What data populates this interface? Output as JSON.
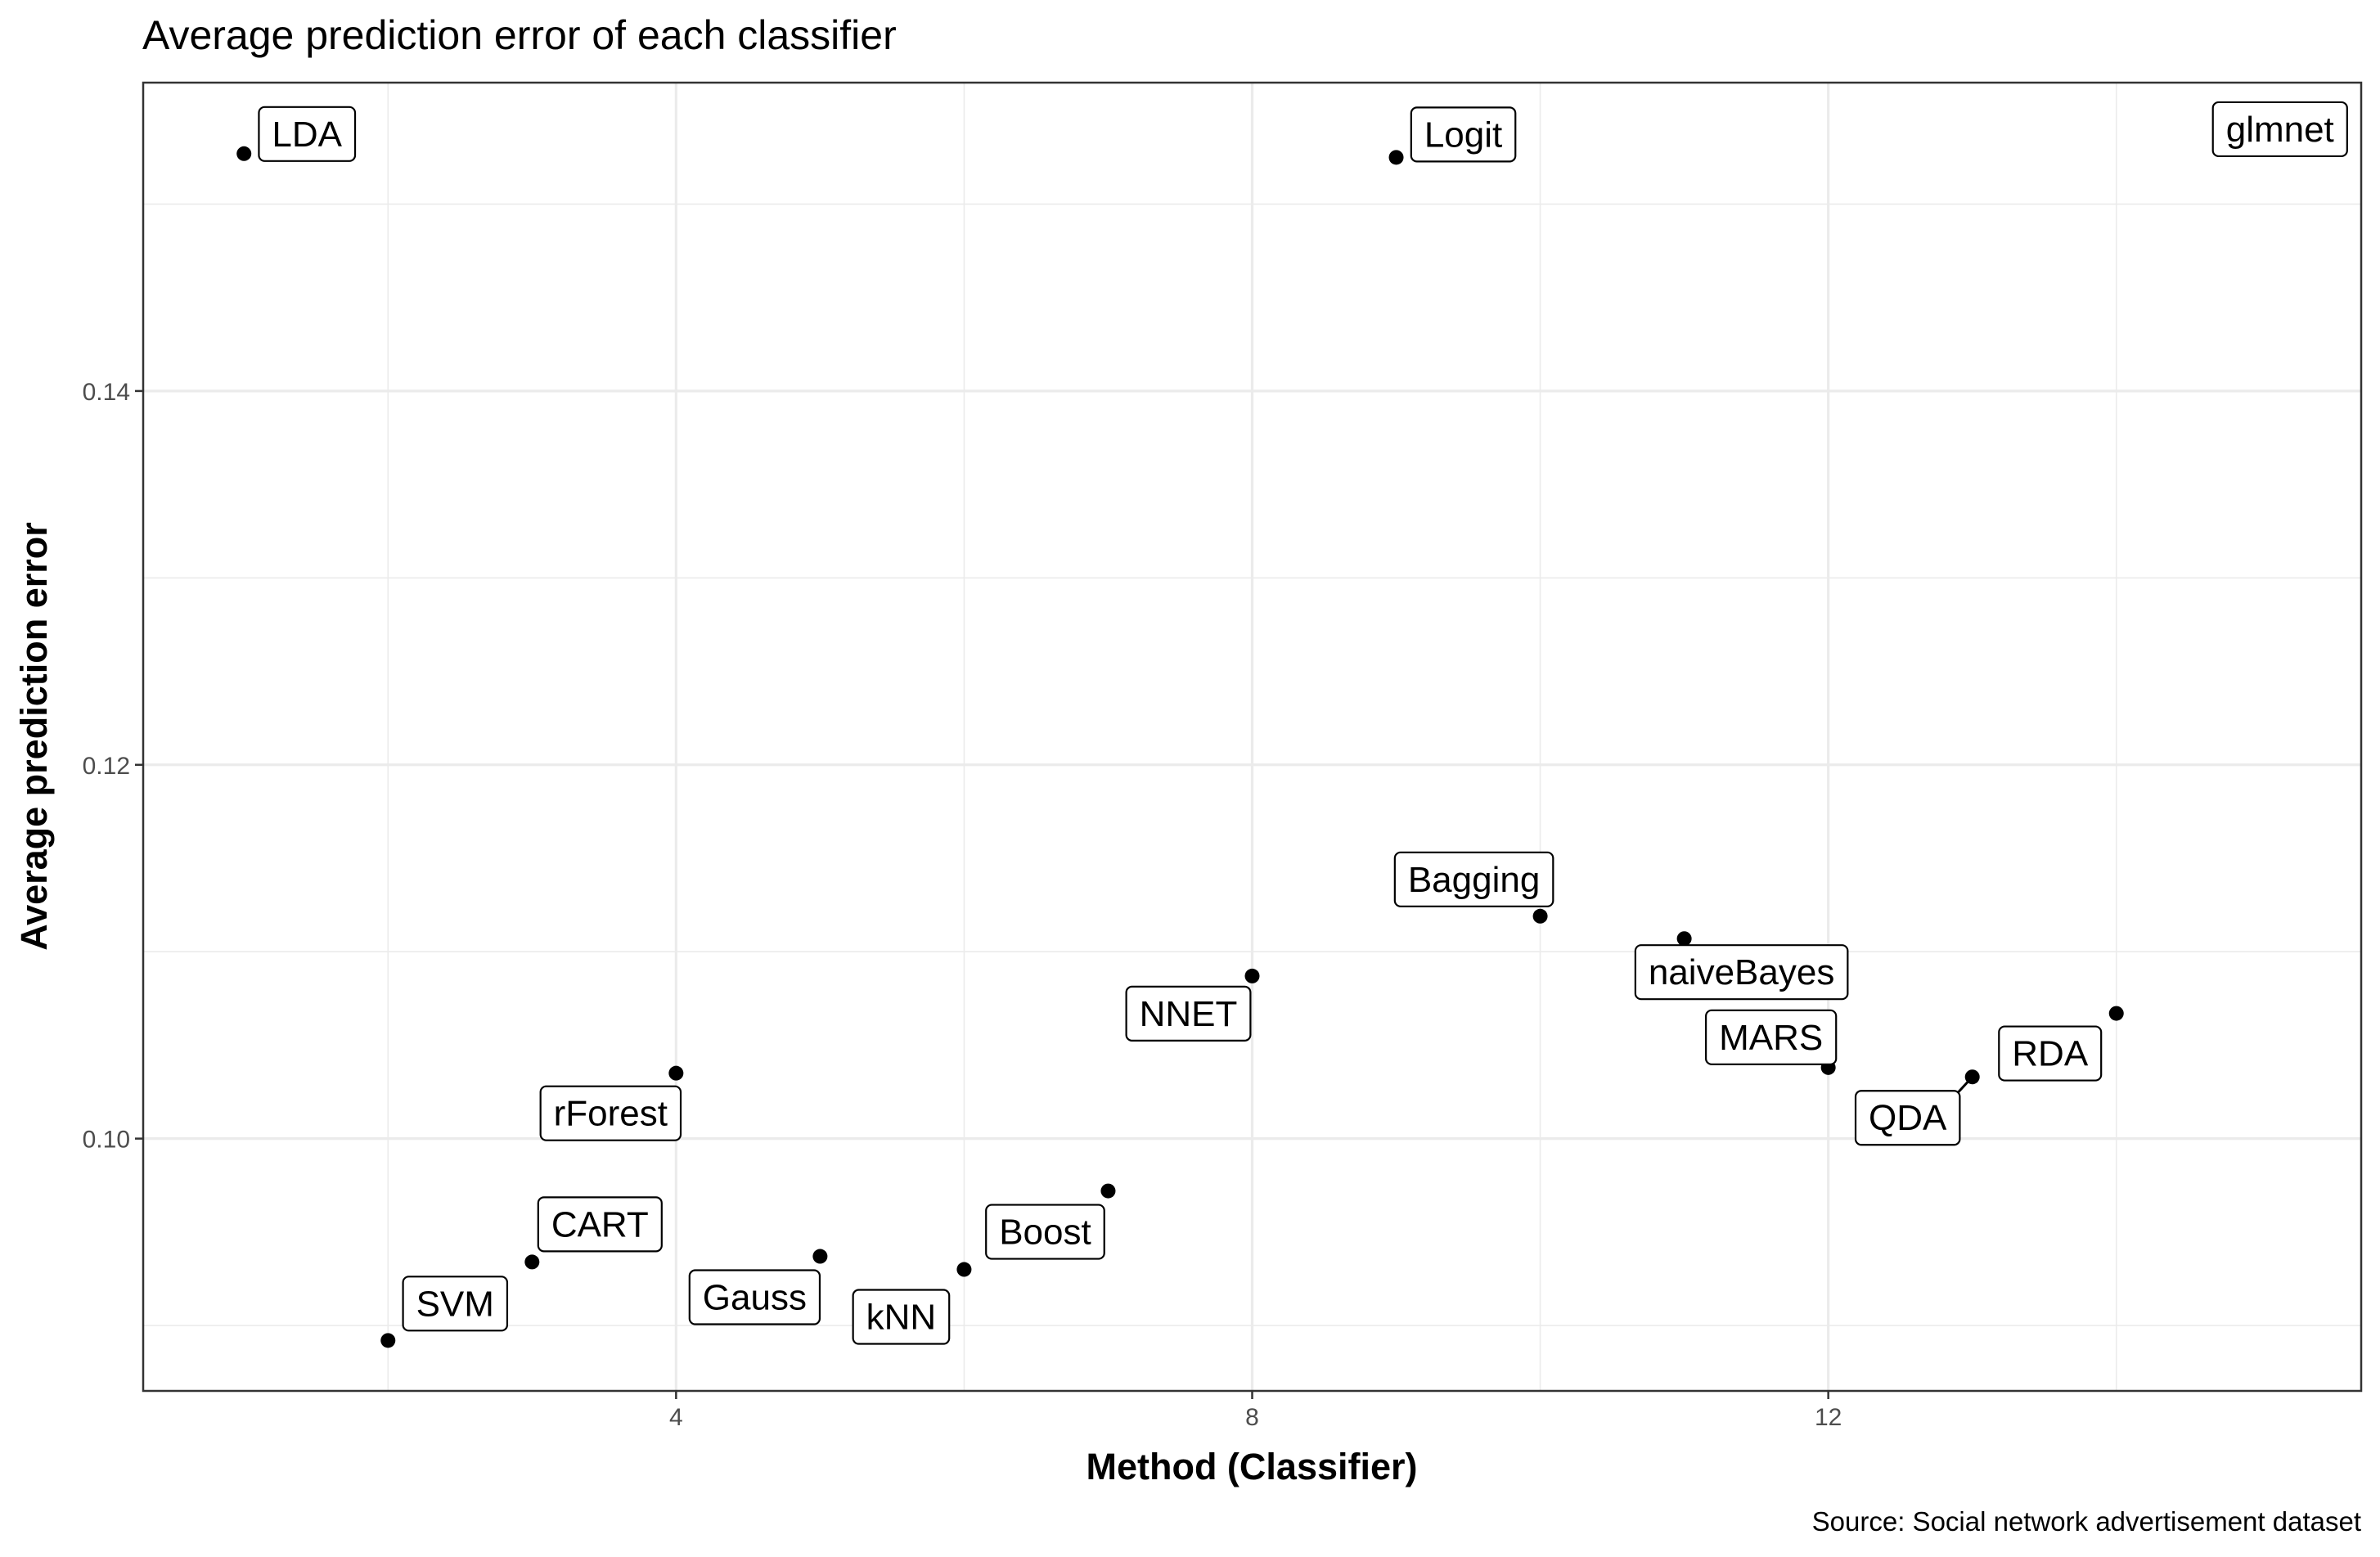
{
  "chart_data": {
    "type": "scatter",
    "title": "Average prediction error of each classifier",
    "xlabel": "Method (Classifier)",
    "ylabel": "Average prediction error",
    "caption": "Source: Social network advertisement dataset",
    "xlim": [
      0.3,
      15.7
    ],
    "ylim": [
      0.0865,
      0.1565
    ],
    "x_ticks": [
      4,
      8,
      12
    ],
    "x_tick_labels": [
      "4",
      "8",
      "12"
    ],
    "y_ticks": [
      0.1,
      0.12,
      0.14
    ],
    "y_tick_labels": [
      "0.10",
      "0.12",
      "0.14"
    ],
    "grid": true,
    "legend": "none",
    "point_color": "#000000",
    "points": [
      {
        "x": 1,
        "y": 0.1527,
        "label": "LDA"
      },
      {
        "x": 2,
        "y": 0.0892,
        "label": "SVM"
      },
      {
        "x": 3,
        "y": 0.0934,
        "label": "CART"
      },
      {
        "x": 4,
        "y": 0.1035,
        "label": "rForest"
      },
      {
        "x": 5,
        "y": 0.0937,
        "label": "Gauss"
      },
      {
        "x": 6,
        "y": 0.093,
        "label": "kNN"
      },
      {
        "x": 7,
        "y": 0.0972,
        "label": "Boost"
      },
      {
        "x": 8,
        "y": 0.1087,
        "label": "NNET"
      },
      {
        "x": 9,
        "y": 0.1525,
        "label": "Logit"
      },
      {
        "x": 10,
        "y": 0.1119,
        "label": "Bagging"
      },
      {
        "x": 11,
        "y": 0.1107,
        "label": "naiveBayes"
      },
      {
        "x": 12,
        "y": 0.1038,
        "label": "MARS"
      },
      {
        "x": 13,
        "y": 0.1033,
        "label": "QDA"
      },
      {
        "x": 14,
        "y": 0.1067,
        "label": "RDA"
      },
      {
        "x": 15,
        "y": 0.153,
        "label": "glmnet"
      }
    ]
  }
}
